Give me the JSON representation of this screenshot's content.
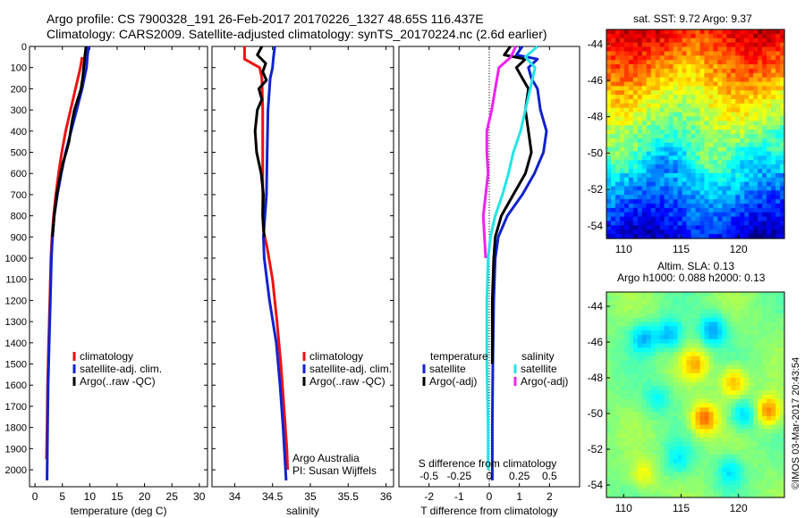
{
  "header": {
    "line1": "Argo profile: CS 7900328_191 26-Feb-2017 20170226_1327 48.65S 116.437E",
    "line2": "Climatology: CARS2009. Satellite-adjusted climatology: synTS_20170224.nc (2.6d earlier)"
  },
  "colors": {
    "climatology": "#ee1111",
    "satellite": "#1122cc",
    "argo": "#000000",
    "argo_salinity_diff": "#ee22ee",
    "satellite_salinity_diff": "#22e5e5"
  },
  "chart_data": [
    {
      "type": "line",
      "name": "temperature-profile",
      "xlabel": "temperature (deg C)",
      "ylabel": "",
      "xlim": [
        -1,
        31.5
      ],
      "ylim": [
        2080,
        0
      ],
      "x_ticks": [
        0,
        5,
        10,
        15,
        20,
        25,
        30
      ],
      "y_ticks": [
        0,
        100,
        200,
        300,
        400,
        500,
        600,
        700,
        800,
        900,
        1000,
        1100,
        1200,
        1300,
        1400,
        1500,
        1600,
        1700,
        1800,
        1900,
        2000
      ],
      "grid": false,
      "legend_position": "bottom-right",
      "legend": [
        "climatology",
        "satellite-adj. clim.",
        "Argo(..raw -QC)"
      ],
      "series": [
        {
          "name": "climatology",
          "color": "#ee1111",
          "depth": [
            50,
            100,
            200,
            300,
            400,
            500,
            600,
            700,
            800,
            900,
            1000,
            1200,
            1400,
            1600,
            1800,
            1950
          ],
          "values": [
            8.6,
            8.3,
            7.4,
            6.5,
            5.6,
            4.9,
            4.3,
            3.8,
            3.4,
            3.1,
            2.9,
            2.7,
            2.5,
            2.3,
            2.2,
            2.1
          ]
        },
        {
          "name": "satellite-adj. clim.",
          "color": "#1122cc",
          "depth": [
            0,
            40,
            100,
            200,
            300,
            400,
            500,
            600,
            700,
            800,
            900,
            1000,
            1200,
            1400,
            1600,
            1800,
            2050
          ],
          "values": [
            9.8,
            9.6,
            9.4,
            8.6,
            7.6,
            6.6,
            5.6,
            4.8,
            4.1,
            3.5,
            3.2,
            3.0,
            2.8,
            2.6,
            2.4,
            2.3,
            2.2
          ]
        },
        {
          "name": "Argo(..raw -QC)",
          "color": "#000000",
          "depth": [
            0,
            50,
            100,
            150,
            200,
            250,
            300,
            350,
            400,
            450,
            500,
            550,
            600,
            650,
            700,
            800,
            900
          ],
          "values": [
            9.3,
            9.1,
            8.9,
            8.7,
            8.4,
            7.8,
            7.2,
            6.8,
            6.5,
            6.2,
            5.7,
            5.1,
            4.7,
            4.3,
            4.0,
            3.5,
            3.2
          ]
        }
      ]
    },
    {
      "type": "line",
      "name": "salinity-profile",
      "xlabel": "salinity",
      "ylabel": "",
      "xlim": [
        33.7,
        36.1
      ],
      "ylim": [
        2080,
        0
      ],
      "x_ticks": [
        34,
        34.5,
        35,
        35.5,
        36
      ],
      "y_ticks": [
        0,
        100,
        200,
        300,
        400,
        500,
        600,
        700,
        800,
        900,
        1000,
        1100,
        1200,
        1300,
        1400,
        1500,
        1600,
        1700,
        1800,
        1900,
        2000
      ],
      "grid": false,
      "legend_position": "bottom-right",
      "legend": [
        "climatology",
        "satellite-adj. clim.",
        "Argo(..raw -QC)"
      ],
      "annotations": [
        "Argo Australia",
        "PI: Susan Wijffels"
      ],
      "series": [
        {
          "name": "climatology",
          "color": "#ee1111",
          "depth": [
            0,
            60,
            100,
            150,
            300,
            500,
            700,
            800,
            870,
            950,
            1100,
            1300,
            1500,
            1700,
            1900,
            2000
          ],
          "values": [
            34.13,
            34.13,
            34.33,
            34.36,
            34.37,
            34.37,
            34.37,
            34.37,
            34.38,
            34.43,
            34.5,
            34.56,
            34.61,
            34.65,
            34.69,
            34.7
          ]
        },
        {
          "name": "satellite-adj. clim.",
          "color": "#1122cc",
          "depth": [
            0,
            60,
            100,
            150,
            300,
            500,
            700,
            800,
            900,
            1000,
            1200,
            1400,
            1600,
            1800,
            2050
          ],
          "values": [
            34.53,
            34.51,
            34.5,
            34.47,
            34.44,
            34.43,
            34.42,
            34.4,
            34.38,
            34.39,
            34.46,
            34.55,
            34.6,
            34.64,
            34.68
          ]
        },
        {
          "name": "Argo(..raw -QC)",
          "color": "#000000",
          "depth": [
            0,
            40,
            80,
            120,
            160,
            200,
            250,
            300,
            400,
            500,
            600,
            700,
            800,
            900
          ],
          "values": [
            34.36,
            34.3,
            34.41,
            34.37,
            34.42,
            34.32,
            34.36,
            34.3,
            34.27,
            34.29,
            34.35,
            34.38,
            34.37,
            34.39
          ]
        }
      ]
    },
    {
      "type": "line",
      "name": "difference-profile",
      "xlabel": "T difference from climatology",
      "xlabel_top": "S difference from climatology",
      "xlim": [
        -3.0,
        3.0
      ],
      "ylim": [
        2080,
        0
      ],
      "x_ticks": [
        -2,
        -1,
        0,
        1,
        2
      ],
      "x_ticks_top": [
        -0.5,
        -0.25,
        0,
        0.25,
        0.5
      ],
      "grid": false,
      "legend_position": "bottom",
      "legend_titles": [
        "temperature",
        "salinity"
      ],
      "legend": [
        "satellite",
        "Argo(-adj)",
        "satellite",
        "Argo(-adj)"
      ],
      "series": [
        {
          "name": "satellite",
          "variable": "temperature",
          "color": "#1122cc",
          "depth": [
            0,
            40,
            60,
            100,
            150,
            200,
            300,
            400,
            500,
            600,
            700,
            800,
            900,
            1000,
            1200,
            1500,
            1800,
            2050
          ],
          "values": [
            1.1,
            0.9,
            1.6,
            1.3,
            1.4,
            1.6,
            1.7,
            1.9,
            1.8,
            1.5,
            1.1,
            0.6,
            0.3,
            0.2,
            0.15,
            0.12,
            0.1,
            0.1
          ]
        },
        {
          "name": "Argo(-adj)",
          "variable": "temperature",
          "color": "#000000",
          "depth": [
            0,
            40,
            60,
            100,
            150,
            200,
            300,
            400,
            500,
            600,
            700,
            800,
            900,
            1000,
            1200,
            1500
          ],
          "values": [
            0.7,
            0.5,
            1.2,
            0.9,
            1.1,
            1.3,
            1.2,
            1.3,
            1.4,
            1.2,
            0.8,
            0.4,
            0.2,
            0.15,
            0.1,
            0.1
          ]
        },
        {
          "name": "satellite",
          "variable": "salinity",
          "color": "#22e5e5",
          "depth": [
            0,
            50,
            100,
            200,
            300,
            400,
            500,
            600,
            700,
            800,
            900,
            1000,
            1200,
            1500,
            1800,
            2000
          ],
          "values": [
            0.4,
            0.3,
            0.38,
            0.34,
            0.3,
            0.26,
            0.2,
            0.16,
            0.11,
            0.05,
            0.01,
            -0.01,
            -0.02,
            -0.02,
            -0.01,
            -0.01
          ]
        },
        {
          "name": "Argo(-adj)",
          "variable": "salinity",
          "color": "#ee22ee",
          "depth": [
            0,
            50,
            100,
            200,
            300,
            400,
            500,
            600,
            700,
            800,
            900,
            1000
          ],
          "values": [
            0.22,
            0.18,
            0.08,
            0.05,
            0.02,
            -0.02,
            -0.02,
            -0.01,
            -0.03,
            -0.05,
            -0.04,
            -0.03
          ]
        }
      ]
    },
    {
      "type": "heatmap",
      "name": "sst-map",
      "title": "sat. SST: 9.72  Argo: 9.37",
      "xlim": [
        108.5,
        124
      ],
      "ylim": [
        -54.7,
        -43.2
      ],
      "x_ticks": [
        110,
        115,
        120
      ],
      "y_ticks": [
        -44,
        -46,
        -48,
        -50,
        -52,
        -54
      ],
      "colormap": "jet"
    },
    {
      "type": "heatmap",
      "name": "sla-map",
      "title": "Altim. SLA: 0.13",
      "subtitle": "Argo h1000: 0.088 h2000: 0.13",
      "xlim": [
        108.5,
        124
      ],
      "ylim": [
        -54.7,
        -43.2
      ],
      "x_ticks": [
        110,
        115,
        120
      ],
      "y_ticks": [
        -44,
        -46,
        -48,
        -50,
        -52,
        -54
      ],
      "colormap": "jet"
    }
  ],
  "credit": "©IMOS 03-Mar-2017 20:43:54"
}
